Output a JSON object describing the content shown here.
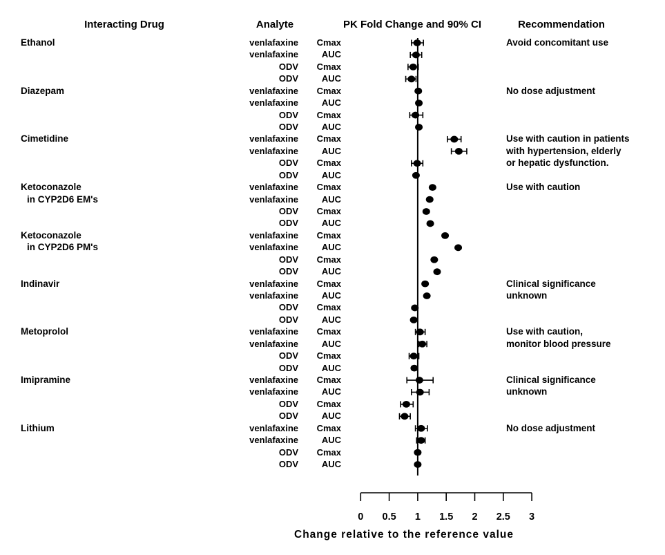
{
  "headers": {
    "interacting_drug": "Interacting Drug",
    "analyte": "Analyte",
    "pk_fold_change": "PK Fold Change and 90% CI",
    "recommendation": "Recommendation"
  },
  "chart_data": {
    "type": "forest",
    "title": "PK Fold Change and 90% CI",
    "xlabel": "Change relative to the reference value",
    "xlim": [
      0,
      3
    ],
    "reference_line": 1,
    "axis": {
      "ticks": [
        0,
        0.5,
        1,
        1.5,
        2,
        2.5,
        3
      ],
      "tick_labels": [
        "0",
        "0.5",
        "1",
        "1.5",
        "2",
        "2.5",
        "3"
      ]
    },
    "colors": {
      "ink": "#000000",
      "background": "#ffffff"
    },
    "groups": [
      {
        "drug": "Ethanol",
        "drug_line2": null,
        "recommendation": [
          "Avoid concomitant use"
        ],
        "rows": [
          {
            "analyte": "venlafaxine",
            "metric": "Cmax",
            "estimate": 0.99,
            "ci_low": 0.89,
            "ci_high": 1.1
          },
          {
            "analyte": "venlafaxine",
            "metric": "AUC",
            "estimate": 0.97,
            "ci_low": 0.87,
            "ci_high": 1.07
          },
          {
            "analyte": "ODV",
            "metric": "Cmax",
            "estimate": 0.92,
            "ci_low": 0.83,
            "ci_high": 1.01
          },
          {
            "analyte": "ODV",
            "metric": "AUC",
            "estimate": 0.89,
            "ci_low": 0.79,
            "ci_high": 0.97
          }
        ]
      },
      {
        "drug": "Diazepam",
        "drug_line2": null,
        "recommendation": [
          "No dose adjustment"
        ],
        "rows": [
          {
            "analyte": "venlafaxine",
            "metric": "Cmax",
            "estimate": 1.01,
            "ci_low": null,
            "ci_high": null
          },
          {
            "analyte": "venlafaxine",
            "metric": "AUC",
            "estimate": 1.02,
            "ci_low": null,
            "ci_high": null
          },
          {
            "analyte": "ODV",
            "metric": "Cmax",
            "estimate": 0.96,
            "ci_low": 0.86,
            "ci_high": 1.09
          },
          {
            "analyte": "ODV",
            "metric": "AUC",
            "estimate": 1.02,
            "ci_low": null,
            "ci_high": null
          }
        ]
      },
      {
        "drug": "Cimetidine",
        "drug_line2": null,
        "recommendation": [
          "Use with caution in patients",
          "with hypertension, elderly",
          "or hepatic dysfunction."
        ],
        "rows": [
          {
            "analyte": "venlafaxine",
            "metric": "Cmax",
            "estimate": 1.64,
            "ci_low": 1.52,
            "ci_high": 1.76
          },
          {
            "analyte": "venlafaxine",
            "metric": "AUC",
            "estimate": 1.72,
            "ci_low": 1.59,
            "ci_high": 1.86
          },
          {
            "analyte": "ODV",
            "metric": "Cmax",
            "estimate": 0.99,
            "ci_low": 0.89,
            "ci_high": 1.09
          },
          {
            "analyte": "ODV",
            "metric": "AUC",
            "estimate": 0.97,
            "ci_low": null,
            "ci_high": null
          }
        ]
      },
      {
        "drug": "Ketoconazole",
        "drug_line2": "in CYP2D6 EM's",
        "recommendation": [
          "Use with caution"
        ],
        "rows": [
          {
            "analyte": "venlafaxine",
            "metric": "Cmax",
            "estimate": 1.26,
            "ci_low": null,
            "ci_high": null
          },
          {
            "analyte": "venlafaxine",
            "metric": "AUC",
            "estimate": 1.21,
            "ci_low": null,
            "ci_high": null
          },
          {
            "analyte": "ODV",
            "metric": "Cmax",
            "estimate": 1.15,
            "ci_low": null,
            "ci_high": null
          },
          {
            "analyte": "ODV",
            "metric": "AUC",
            "estimate": 1.22,
            "ci_low": null,
            "ci_high": null
          }
        ]
      },
      {
        "drug": "Ketoconazole",
        "drug_line2": "in CYP2D6 PM's",
        "recommendation": [],
        "rows": [
          {
            "analyte": "venlafaxine",
            "metric": "Cmax",
            "estimate": 1.48,
            "ci_low": null,
            "ci_high": null
          },
          {
            "analyte": "venlafaxine",
            "metric": "AUC",
            "estimate": 1.71,
            "ci_low": null,
            "ci_high": null
          },
          {
            "analyte": "ODV",
            "metric": "Cmax",
            "estimate": 1.29,
            "ci_low": null,
            "ci_high": null
          },
          {
            "analyte": "ODV",
            "metric": "AUC",
            "estimate": 1.34,
            "ci_low": null,
            "ci_high": null
          }
        ]
      },
      {
        "drug": "Indinavir",
        "drug_line2": null,
        "recommendation": [
          "Clinical significance",
          "unknown"
        ],
        "rows": [
          {
            "analyte": "venlafaxine",
            "metric": "Cmax",
            "estimate": 1.13,
            "ci_low": null,
            "ci_high": null
          },
          {
            "analyte": "venlafaxine",
            "metric": "AUC",
            "estimate": 1.16,
            "ci_low": null,
            "ci_high": null
          },
          {
            "analyte": "ODV",
            "metric": "Cmax",
            "estimate": 0.95,
            "ci_low": null,
            "ci_high": null
          },
          {
            "analyte": "ODV",
            "metric": "AUC",
            "estimate": 0.93,
            "ci_low": null,
            "ci_high": null
          }
        ]
      },
      {
        "drug": "Metoprolol",
        "drug_line2": null,
        "recommendation": [
          "Use with caution,",
          "monitor blood pressure"
        ],
        "rows": [
          {
            "analyte": "venlafaxine",
            "metric": "Cmax",
            "estimate": 1.04,
            "ci_low": 0.96,
            "ci_high": 1.13
          },
          {
            "analyte": "venlafaxine",
            "metric": "AUC",
            "estimate": 1.08,
            "ci_low": 1.02,
            "ci_high": 1.16
          },
          {
            "analyte": "ODV",
            "metric": "Cmax",
            "estimate": 0.93,
            "ci_low": 0.85,
            "ci_high": 1.02
          },
          {
            "analyte": "ODV",
            "metric": "AUC",
            "estimate": 0.94,
            "ci_low": null,
            "ci_high": null
          }
        ]
      },
      {
        "drug": "Imipramine",
        "drug_line2": null,
        "recommendation": [
          "Clinical significance",
          "unknown"
        ],
        "rows": [
          {
            "analyte": "venlafaxine",
            "metric": "Cmax",
            "estimate": 1.03,
            "ci_low": 0.81,
            "ci_high": 1.27
          },
          {
            "analyte": "venlafaxine",
            "metric": "AUC",
            "estimate": 1.04,
            "ci_low": 0.89,
            "ci_high": 1.2
          },
          {
            "analyte": "ODV",
            "metric": "Cmax",
            "estimate": 0.8,
            "ci_low": 0.7,
            "ci_high": 0.92
          },
          {
            "analyte": "ODV",
            "metric": "AUC",
            "estimate": 0.77,
            "ci_low": 0.68,
            "ci_high": 0.87
          }
        ]
      },
      {
        "drug": "Lithium",
        "drug_line2": null,
        "recommendation": [
          "No dose adjustment"
        ],
        "rows": [
          {
            "analyte": "venlafaxine",
            "metric": "Cmax",
            "estimate": 1.06,
            "ci_low": 0.96,
            "ci_high": 1.17
          },
          {
            "analyte": "venlafaxine",
            "metric": "AUC",
            "estimate": 1.06,
            "ci_low": 0.98,
            "ci_high": 1.13
          },
          {
            "analyte": "ODV",
            "metric": "Cmax",
            "estimate": 1.0,
            "ci_low": null,
            "ci_high": null
          },
          {
            "analyte": "ODV",
            "metric": "AUC",
            "estimate": 1.0,
            "ci_low": null,
            "ci_high": null
          }
        ]
      }
    ]
  }
}
